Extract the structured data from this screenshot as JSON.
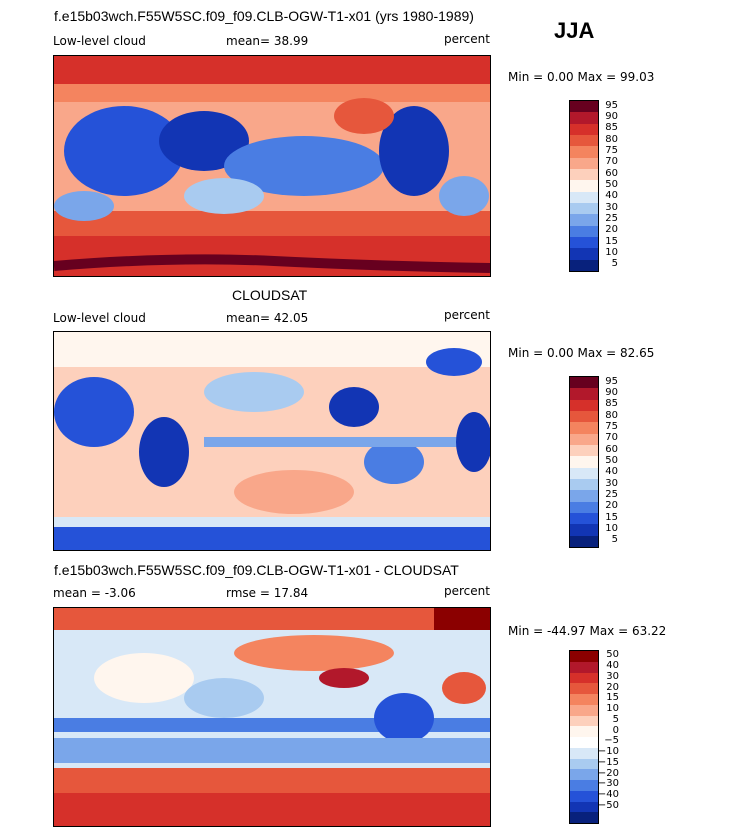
{
  "season": "JJA",
  "panels": [
    {
      "title": "f.e15b03wch.F55W5SC.f09_f09.CLB-OGW-T1-x01 (yrs 1980-1989)",
      "left_label": "Low-level cloud",
      "stat_label": "mean=  38.99",
      "units": "percent",
      "minmax": "Min =    0.00 Max =  99.03",
      "colorbar_labels": [
        "95",
        "90",
        "85",
        "80",
        "75",
        "70",
        "60",
        "50",
        "40",
        "30",
        "25",
        "20",
        "15",
        "10",
        "5"
      ],
      "colorbar_colors": [
        "#67001f",
        "#b2182b",
        "#d6302a",
        "#e6573c",
        "#f4845f",
        "#f9a78a",
        "#fdd0bc",
        "#fff6ee",
        "#d8e8f7",
        "#a9cbf0",
        "#7aa6ea",
        "#4a7de3",
        "#2552d8",
        "#1235b4",
        "#08217c"
      ]
    },
    {
      "title": "CLOUDSAT",
      "left_label": "Low-level cloud",
      "stat_label": "mean=  42.05",
      "units": "percent",
      "minmax": "Min =    0.00 Max =  82.65",
      "colorbar_labels": [
        "95",
        "90",
        "85",
        "80",
        "75",
        "70",
        "60",
        "50",
        "40",
        "30",
        "25",
        "20",
        "15",
        "10",
        "5"
      ],
      "colorbar_colors": [
        "#67001f",
        "#b2182b",
        "#d6302a",
        "#e6573c",
        "#f4845f",
        "#f9a78a",
        "#fdd0bc",
        "#fff6ee",
        "#d8e8f7",
        "#a9cbf0",
        "#7aa6ea",
        "#4a7de3",
        "#2552d8",
        "#1235b4",
        "#08217c"
      ]
    },
    {
      "title": "f.e15b03wch.F55W5SC.f09_f09.CLB-OGW-T1-x01 - CLOUDSAT",
      "left_label": "mean =   -3.06",
      "stat_label": "rmse =   17.84",
      "units": "percent",
      "minmax": "Min = -44.97 Max =  63.22",
      "colorbar_labels": [
        "50",
        "40",
        "30",
        "20",
        "15",
        "10",
        "5",
        "0",
        "−5",
        "−10",
        "−15",
        "−20",
        "−30",
        "−40",
        "−50"
      ],
      "colorbar_colors": [
        "#8b0000",
        "#b2182b",
        "#d6302a",
        "#e6573c",
        "#f4845f",
        "#f9a78a",
        "#fdd0bc",
        "#fff6ee",
        "#ffffff",
        "#d8e8f7",
        "#a9cbf0",
        "#7aa6ea",
        "#4a7de3",
        "#2552d8",
        "#1235b4",
        "#08217c"
      ]
    }
  ]
}
